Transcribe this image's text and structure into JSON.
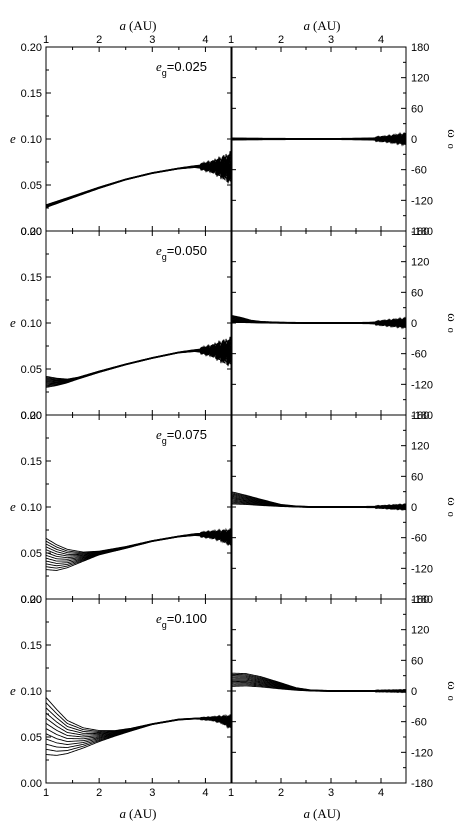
{
  "figure": {
    "x_axis_title": {
      "var": "a",
      "unit": "(AU)"
    },
    "left_axis_title": "e",
    "right_axis_title": {
      "var": "ω",
      "unit": "o"
    }
  },
  "chart_data": [
    {
      "type": "line",
      "panel": "e-0.025",
      "label_prefix": "e",
      "label_sub": "g",
      "label_value": "=0.025",
      "xlim": [
        1,
        4.5
      ],
      "ylim": [
        0,
        0.2
      ],
      "xticks": [
        1,
        2,
        3,
        4
      ],
      "yticks": [
        "0.00",
        "0.05",
        "0.10",
        "0.15",
        "0.20"
      ],
      "x": [
        1.0,
        1.5,
        2.0,
        2.5,
        3.0,
        3.5,
        3.8,
        4.1,
        4.3,
        4.5
      ],
      "y_mean": [
        0.027,
        0.037,
        0.047,
        0.056,
        0.063,
        0.068,
        0.07,
        0.07,
        0.069,
        0.068
      ],
      "band_start": [
        0.003,
        0.002,
        0.0015,
        0.001,
        0.001,
        0.001,
        0.002,
        0.006,
        0.012,
        0.018
      ]
    },
    {
      "type": "line",
      "panel": "w-0.025",
      "xlim": [
        1,
        4.5
      ],
      "ylim": [
        -180,
        180
      ],
      "xticks": [
        1,
        2,
        3,
        4
      ],
      "yticks": [
        "180",
        "120",
        "60",
        "0",
        "-60",
        "-120",
        "-180"
      ],
      "x": [
        1.0,
        1.5,
        2.0,
        2.5,
        3.0,
        3.5,
        3.8,
        4.1,
        4.3,
        4.5
      ],
      "y_mean": [
        0,
        0,
        0,
        0,
        0,
        0,
        0,
        0,
        0,
        0
      ],
      "band_start": [
        4,
        3,
        2.5,
        2,
        2,
        3,
        4,
        6,
        9,
        12
      ]
    },
    {
      "type": "line",
      "panel": "e-0.050",
      "label_prefix": "e",
      "label_sub": "g",
      "label_value": "=0.050",
      "xlim": [
        1,
        4.5
      ],
      "ylim": [
        0,
        0.2
      ],
      "xticks": [
        1,
        2,
        3,
        4
      ],
      "yticks": [
        "0.00",
        "0.05",
        "0.10",
        "0.15",
        "0.20"
      ],
      "x": [
        1.0,
        1.2,
        1.4,
        1.6,
        2.0,
        2.5,
        3.0,
        3.5,
        3.8,
        4.1,
        4.3,
        4.5
      ],
      "y_mean": [
        0.036,
        0.036,
        0.037,
        0.04,
        0.047,
        0.055,
        0.062,
        0.068,
        0.07,
        0.07,
        0.069,
        0.068
      ],
      "band_start": [
        0.012,
        0.008,
        0.004,
        0.002,
        0.0015,
        0.001,
        0.001,
        0.001,
        0.002,
        0.006,
        0.012,
        0.016
      ]
    },
    {
      "type": "line",
      "panel": "w-0.050",
      "xlim": [
        1,
        4.5
      ],
      "ylim": [
        -180,
        180
      ],
      "xticks": [
        1,
        2,
        3,
        4
      ],
      "yticks": [
        "180",
        "120",
        "60",
        "0",
        "-60",
        "-120",
        "-180"
      ],
      "x": [
        1.0,
        1.2,
        1.4,
        1.6,
        2.0,
        2.5,
        3.0,
        3.5,
        3.8,
        4.1,
        4.3,
        4.5
      ],
      "y_mean": [
        8,
        6,
        3,
        1.5,
        0.5,
        0,
        0,
        0,
        0,
        0,
        0,
        0
      ],
      "band_start": [
        14,
        10,
        5,
        3,
        2,
        2,
        2,
        2,
        3,
        6,
        8,
        10
      ]
    },
    {
      "type": "line",
      "panel": "e-0.075",
      "label_prefix": "e",
      "label_sub": "g",
      "label_value": "=0.075",
      "xlim": [
        1,
        4.5
      ],
      "ylim": [
        0,
        0.2
      ],
      "xticks": [
        1,
        2,
        3,
        4
      ],
      "yticks": [
        "0.00",
        "0.05",
        "0.10",
        "0.15",
        "0.20"
      ],
      "x": [
        1.0,
        1.2,
        1.4,
        1.7,
        2.0,
        2.5,
        3.0,
        3.5,
        3.8,
        4.1,
        4.3,
        4.5
      ],
      "y_mean": [
        0.049,
        0.045,
        0.044,
        0.046,
        0.05,
        0.056,
        0.063,
        0.068,
        0.07,
        0.07,
        0.069,
        0.066
      ],
      "band_start": [
        0.034,
        0.028,
        0.02,
        0.01,
        0.004,
        0.002,
        0.001,
        0.001,
        0.002,
        0.004,
        0.006,
        0.01
      ]
    },
    {
      "type": "line",
      "panel": "w-0.075",
      "xlim": [
        1,
        4.5
      ],
      "ylim": [
        -180,
        180
      ],
      "xticks": [
        1,
        2,
        3,
        4
      ],
      "yticks": [
        "180",
        "120",
        "60",
        "0",
        "-60",
        "-120",
        "-180"
      ],
      "x": [
        1.0,
        1.3,
        1.6,
        2.0,
        2.3,
        2.6,
        3.0,
        3.5,
        4.0,
        4.5
      ],
      "y_mean": [
        18,
        14,
        9,
        3,
        1,
        0,
        0,
        0,
        0,
        0
      ],
      "band_start": [
        24,
        18,
        12,
        4,
        2,
        2,
        2,
        2,
        3,
        6
      ]
    },
    {
      "type": "line",
      "panel": "e-0.100",
      "label_prefix": "e",
      "label_sub": "g",
      "label_value": "=0.100",
      "xlim": [
        1,
        4.5
      ],
      "ylim": [
        0,
        0.2
      ],
      "xticks": [
        1,
        2,
        3,
        4
      ],
      "yticks": [
        "0.00",
        "0.05",
        "0.10",
        "0.15",
        "0.20"
      ],
      "x": [
        1.0,
        1.2,
        1.4,
        1.7,
        2.0,
        2.3,
        2.6,
        3.0,
        3.5,
        3.8,
        4.1,
        4.3,
        4.5
      ],
      "y_mean": [
        0.062,
        0.055,
        0.05,
        0.049,
        0.051,
        0.054,
        0.058,
        0.064,
        0.069,
        0.07,
        0.07,
        0.069,
        0.066
      ],
      "band_start": [
        0.062,
        0.05,
        0.036,
        0.022,
        0.012,
        0.006,
        0.003,
        0.001,
        0.001,
        0.001,
        0.002,
        0.004,
        0.008
      ]
    },
    {
      "type": "line",
      "panel": "w-0.100",
      "xlim": [
        1,
        4.5
      ],
      "ylim": [
        -180,
        180
      ],
      "xticks": [
        1,
        2,
        3,
        4
      ],
      "yticks": [
        "180",
        "120",
        "60",
        "0",
        "-60",
        "-120",
        "-180"
      ],
      "x": [
        1.0,
        1.3,
        1.6,
        2.0,
        2.3,
        2.6,
        3.0,
        3.5,
        4.0,
        4.5
      ],
      "y_mean": [
        22,
        22,
        18,
        10,
        4,
        1,
        0,
        0,
        0,
        0
      ],
      "band_start": [
        26,
        24,
        20,
        12,
        5,
        2,
        2,
        2,
        2,
        3
      ]
    }
  ]
}
